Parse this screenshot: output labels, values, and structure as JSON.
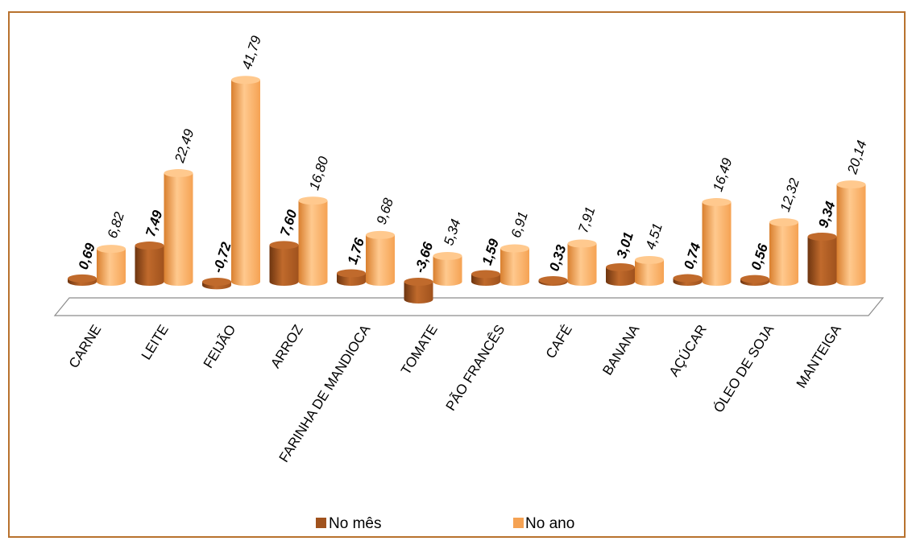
{
  "chart_data": {
    "type": "bar",
    "categories": [
      "CARNE",
      "LEITE",
      "FEIJÃO",
      "ARROZ",
      "FARINHA DE MANDIOCA",
      "TOMATE",
      "PÃO FRANCÊS",
      "CAFÉ",
      "BANANA",
      "AÇÚCAR",
      "ÓLEO DE SOJA",
      "MANTEIGA"
    ],
    "series": [
      {
        "name": "No mês",
        "values": [
          0.69,
          7.49,
          -0.72,
          7.6,
          1.76,
          -3.66,
          1.59,
          0.33,
          3.01,
          0.74,
          0.56,
          9.34
        ],
        "labels": [
          "0,69",
          "7,49",
          "-0,72",
          "7,60",
          "1,76",
          "-3,66",
          "1,59",
          "0,33",
          "3,01",
          "0,74",
          "0,56",
          "9,34"
        ]
      },
      {
        "name": "No ano",
        "values": [
          6.82,
          22.49,
          41.79,
          16.8,
          9.68,
          5.34,
          6.91,
          7.91,
          4.51,
          16.49,
          12.32,
          20.14
        ],
        "labels": [
          "6,82",
          "22,49",
          "41,79",
          "16,80",
          "9,68",
          "5,34",
          "6,91",
          "7,91",
          "4,51",
          "16,49",
          "12,32",
          "20,14"
        ]
      }
    ],
    "legend_position": "bottom",
    "grid": false,
    "colors": {
      "month": "#a0521d",
      "month_dark": "#6e3510",
      "month_light": "#c06a2c",
      "year": "#f5a253",
      "year_dark": "#d97f2e",
      "year_light": "#ffc98e",
      "frame": "#b8722e"
    }
  }
}
